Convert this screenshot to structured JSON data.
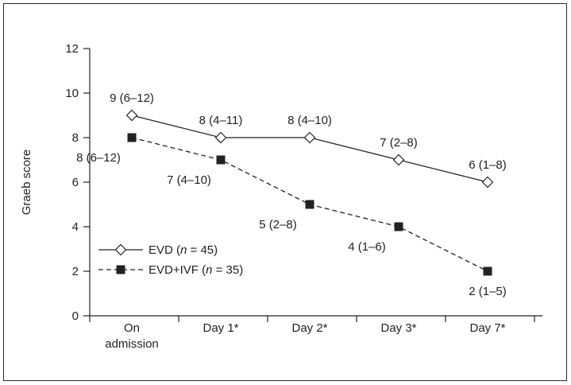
{
  "chart_data": {
    "type": "line",
    "title": "",
    "xlabel": "",
    "ylabel": "Graeb score",
    "ylim": [
      0,
      12
    ],
    "yticks": [
      0,
      2,
      4,
      6,
      8,
      10,
      12
    ],
    "categories": [
      [
        "On",
        "admission"
      ],
      [
        "Day 1*"
      ],
      [
        "Day 2*"
      ],
      [
        "Day 3*"
      ],
      [
        "Day 7*"
      ]
    ],
    "series": [
      {
        "name": "EVD",
        "legend_prefix": "EVD (",
        "legend_n": "n",
        "legend_suffix": " = 45)",
        "values": [
          9,
          8,
          8,
          7,
          6
        ],
        "labels": [
          "9 (6–12)",
          "8 (4–11)",
          "8 (4–10)",
          "7 (2–8)",
          "6 (1–8)"
        ],
        "marker": "open-diamond",
        "line": "solid",
        "color": "#222222"
      },
      {
        "name": "EVD+IVF",
        "legend_prefix": "EVD+IVF (",
        "legend_n": "n",
        "legend_suffix": " = 35)",
        "values": [
          8,
          7,
          5,
          4,
          2
        ],
        "labels": [
          "8 (6–12)",
          "7 (4–10)",
          "5 (2–8)",
          "4 (1–6)",
          "2 (1–5)"
        ],
        "marker": "filled-square",
        "line": "dashed",
        "color": "#222222"
      }
    ],
    "grid": false,
    "legend_position": "lower-left"
  }
}
